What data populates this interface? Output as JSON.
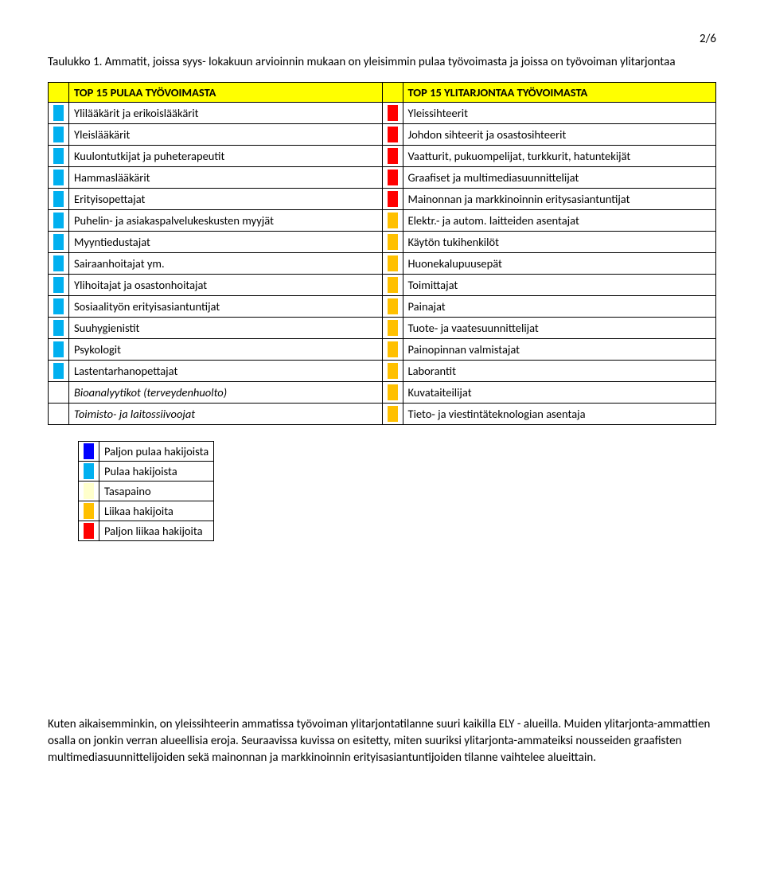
{
  "page_number": "2/6",
  "caption": "Taulukko 1. Ammatit, joissa syys- lokakuun arvioinnin mukaan on yleisimmin pulaa työvoimasta ja joissa on työvoiman ylitarjontaa",
  "colors": {
    "header_bg": "#ffff00",
    "blue_dark": "#0000ff",
    "blue_light": "#00b0f0",
    "balance": "#ffffcc",
    "orange": "#ffc000",
    "red": "#ff0000",
    "white": "#ffffff"
  },
  "header_left": "TOP 15 PULAA TYÖVOIMASTA",
  "header_right": "TOP 15 YLITARJONTAA TYÖVOIMASTA",
  "rows": [
    {
      "lc": "blue_light",
      "lt": "Ylilääkärit ja erikoislääkärit",
      "rc": "red",
      "rt": "Yleissihteerit"
    },
    {
      "lc": "blue_light",
      "lt": "Yleislääkärit",
      "rc": "red",
      "rt": "Johdon sihteerit ja osastosihteerit"
    },
    {
      "lc": "blue_light",
      "lt": "Kuulontutkijat ja puheterapeutit",
      "rc": "red",
      "rt": "Vaatturit, pukuompelijat, turkkurit, hatuntekijät"
    },
    {
      "lc": "blue_light",
      "lt": "Hammaslääkärit",
      "rc": "red",
      "rt": "Graafiset ja multimediasuunnittelijat"
    },
    {
      "lc": "blue_light",
      "lt": "Erityisopettajat",
      "rc": "red",
      "rt": "Mainonnan ja markkinoinnin eritysasiantuntijat"
    },
    {
      "lc": "blue_light",
      "lt": "Puhelin- ja asiakaspalvelukeskusten myyjät",
      "rc": "orange",
      "rt": "Elektr.- ja autom. laitteiden asentajat"
    },
    {
      "lc": "blue_light",
      "lt": "Myyntiedustajat",
      "rc": "orange",
      "rt": "Käytön tukihenkilöt"
    },
    {
      "lc": "blue_light",
      "lt": "Sairaanhoitajat ym.",
      "rc": "orange",
      "rt": "Huonekalupuusepät"
    },
    {
      "lc": "blue_light",
      "lt": "Ylihoitajat ja osastonhoitajat",
      "rc": "orange",
      "rt": "Toimittajat"
    },
    {
      "lc": "blue_light",
      "lt": "Sosiaalityön erityisasiantuntijat",
      "rc": "orange",
      "rt": "Painajat"
    },
    {
      "lc": "blue_light",
      "lt": "Suuhygienistit",
      "rc": "orange",
      "rt": "Tuote- ja vaatesuunnittelijat"
    },
    {
      "lc": "blue_light",
      "lt": "Psykologit",
      "rc": "orange",
      "rt": "Painopinnan valmistajat"
    },
    {
      "lc": "blue_light",
      "lt": "Lastentarhanopettajat",
      "rc": "orange",
      "rt": "Laborantit"
    },
    {
      "lc": "white",
      "lt": "Bioanalyytikot (terveydenhuolto)",
      "li": true,
      "rc": "orange",
      "rt": "Kuvataiteilijat"
    },
    {
      "lc": "white",
      "lt": "Toimisto- ja laitossiivoojat",
      "li": true,
      "rc": "orange",
      "rt": "Tieto- ja viestintäteknologian asentaja"
    }
  ],
  "legend": [
    {
      "c": "blue_dark",
      "t": "Paljon pulaa hakijoista"
    },
    {
      "c": "blue_light",
      "t": "Pulaa hakijoista"
    },
    {
      "c": "balance",
      "t": "Tasapaino"
    },
    {
      "c": "orange",
      "t": "Liikaa hakijoita"
    },
    {
      "c": "red",
      "t": "Paljon liikaa hakijoita"
    }
  ],
  "body_text": "Kuten aikaisemminkin, on yleissihteerin ammatissa työvoiman ylitarjontatilanne suuri kaikilla ELY - alueilla. Muiden ylitarjonta-ammattien osalla on jonkin verran alueellisia eroja. Seuraavissa kuvissa on esitetty, miten suuriksi ylitarjonta-ammateiksi nousseiden graafisten multimediasuunnittelijoiden sekä mainonnan ja markkinoinnin erityisasiantuntijoiden tilanne vaihtelee alueittain."
}
